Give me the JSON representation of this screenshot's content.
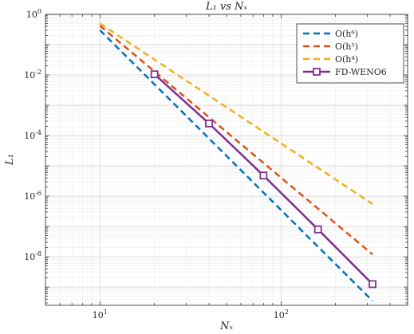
{
  "chart_data": {
    "type": "line",
    "title": "L₁ vs Nₓ",
    "xlabel": "Nₓ",
    "ylabel": "L₁",
    "xscale": "log",
    "yscale": "log",
    "xlim": [
      5,
      500
    ],
    "ylim": [
      2.5e-10,
      1
    ],
    "grid": true,
    "legend_position": "top-right",
    "x_ticks": [
      {
        "value": 10,
        "base": "10",
        "exp": "1"
      },
      {
        "value": 100,
        "base": "10",
        "exp": "2"
      }
    ],
    "y_ticks": [
      {
        "value": 1,
        "base": "10",
        "exp": "0"
      },
      {
        "value": 0.01,
        "base": "10",
        "exp": "-2"
      },
      {
        "value": 0.0001,
        "base": "10",
        "exp": "-4"
      },
      {
        "value": 1e-06,
        "base": "10",
        "exp": "-6"
      },
      {
        "value": 1e-08,
        "base": "10",
        "exp": "-8"
      }
    ],
    "series": [
      {
        "name": "O(h⁶)",
        "color": "#0072BD",
        "style": "dashed",
        "marker": "none",
        "x": [
          10,
          320
        ],
        "y": [
          0.3,
          3.5e-10
        ]
      },
      {
        "name": "O(h⁵)",
        "color": "#D95319",
        "style": "dashed",
        "marker": "none",
        "x": [
          10,
          320
        ],
        "y": [
          0.42,
          1.2e-08
        ]
      },
      {
        "name": "O(h⁴)",
        "color": "#EDB120",
        "style": "dashed",
        "marker": "none",
        "x": [
          10,
          320
        ],
        "y": [
          0.5,
          5.5e-07
        ]
      },
      {
        "name": "FD-WENO6",
        "color": "#7E2F8E",
        "style": "solid",
        "marker": "square",
        "x": [
          20,
          40,
          80,
          160,
          320
        ],
        "y": [
          0.0105,
          0.00025,
          4.8e-06,
          8e-08,
          1.25e-09
        ]
      }
    ]
  }
}
